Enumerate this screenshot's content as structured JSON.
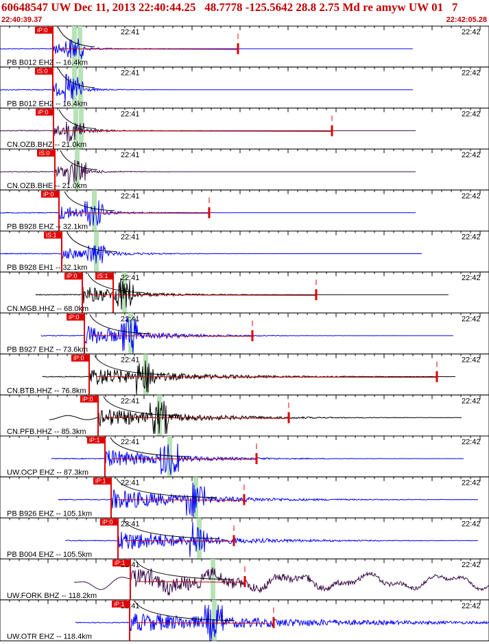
{
  "header": {
    "title": "60648547 UW Dec 11, 2013 22:40:44.25   48.7778 -125.5642 28.8 2.75 Md re amyw UW 01   7",
    "start_time": "22:40:39.37",
    "end_time": "22:42:05.28"
  },
  "tick_labels": {
    "mid": "22:41",
    "right": "22:42"
  },
  "colors": {
    "pick": "#e00000",
    "green_band": "#b7e3b7",
    "frame": "#000000",
    "blue": "#0000ff",
    "black": "#000000",
    "darkpurple": "#3a0a4a",
    "red": "#c00000"
  },
  "traces": [
    {
      "label": "PB B012 EHZ -- 16.4km",
      "picks": [
        "iP:0"
      ],
      "color": "blue"
    },
    {
      "label": "PB B012 EH2 -- 16.4km",
      "picks": [
        "iS:0"
      ],
      "color": "blue"
    },
    {
      "label": "CN.OZB.BHZ -- 21.0km",
      "picks": [
        "iP:0"
      ],
      "color": "darkpurple"
    },
    {
      "label": "CN.OZB.BHE -- 21.0km",
      "picks": [
        "iS:0"
      ],
      "color": "darkpurple"
    },
    {
      "label": "PB B928 EHZ -- 32.1km",
      "picks": [
        "iP:0"
      ],
      "color": "blue"
    },
    {
      "label": "PB B928 EH1 -- 32.1km",
      "picks": [
        "iS:1"
      ],
      "color": "blue"
    },
    {
      "label": "CN.MGB.HHZ -- 68.0km",
      "picks": [
        "iP:0",
        "iS:1"
      ],
      "color": "black"
    },
    {
      "label": "PB B927 EHZ -- 73.6km",
      "picks": [
        "iP:0"
      ],
      "color": "blue"
    },
    {
      "label": "CN.BTB.HHZ -- 76.8km",
      "picks": [
        "iP:0"
      ],
      "color": "black"
    },
    {
      "label": "CN.PFB.HHZ -- 85.3km",
      "picks": [
        "iP:0"
      ],
      "color": "black"
    },
    {
      "label": "UW.OCP EHZ -- 87.3km",
      "picks": [
        "iP:1"
      ],
      "color": "blue"
    },
    {
      "label": "PB B926 EHZ -- 105.1km",
      "picks": [
        "iP:1"
      ],
      "color": "blue"
    },
    {
      "label": "PB B004 EHZ -- 105.5km",
      "picks": [
        "iP:0"
      ],
      "color": "blue"
    },
    {
      "label": "UW.FORK BHZ -- 118.2km",
      "picks": [
        "iP:1"
      ],
      "color": "darkpurple"
    },
    {
      "label": "UW.OTR EHZ -- 118.4km",
      "picks": [
        "iP:1"
      ],
      "color": "blue"
    }
  ]
}
